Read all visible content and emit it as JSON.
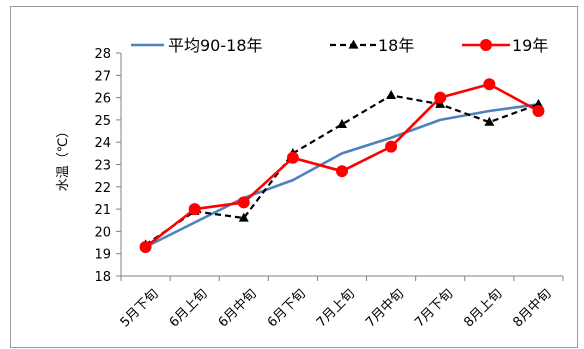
{
  "chart_data": {
    "type": "line",
    "title": "",
    "xlabel": "",
    "ylabel": "水温（℃）",
    "ylim": [
      18,
      28
    ],
    "y_ticks": [
      "18",
      "19",
      "20",
      "21",
      "22",
      "23",
      "24",
      "25",
      "26",
      "27",
      "28"
    ],
    "categories": [
      "5月下旬",
      "6月上旬",
      "6月中旬",
      "6月下旬",
      "7月上旬",
      "7月中旬",
      "7月下旬",
      "8月上旬",
      "8月中旬"
    ],
    "grid": false,
    "legend_position": "top",
    "series": [
      {
        "name": "平均90-18年",
        "color": "#4f81bd",
        "style": "solid",
        "marker": "none",
        "values": [
          19.3,
          20.4,
          21.5,
          22.3,
          23.5,
          24.2,
          25.0,
          25.4,
          25.7
        ]
      },
      {
        "name": "18年",
        "color": "#000000",
        "style": "dashed",
        "marker": "triangle",
        "values": [
          19.4,
          20.9,
          20.6,
          23.5,
          24.8,
          26.1,
          25.7,
          24.9,
          25.7
        ]
      },
      {
        "name": "19年",
        "color": "#ff0000",
        "style": "solid",
        "marker": "circle",
        "values": [
          19.3,
          21.0,
          21.3,
          23.3,
          22.7,
          23.8,
          26.0,
          26.6,
          25.4
        ]
      }
    ]
  }
}
